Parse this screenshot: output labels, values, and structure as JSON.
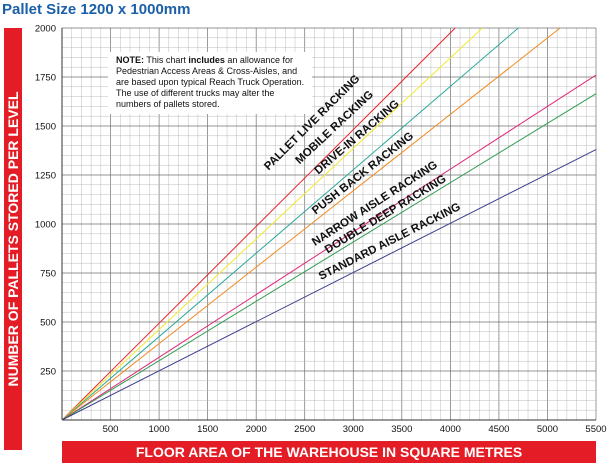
{
  "chart_data": {
    "type": "line",
    "title": "Pallet Size 1200 x 1000mm",
    "xlabel": "FLOOR AREA OF THE WAREHOUSE IN SQUARE METRES",
    "ylabel": "NUMBER OF PALLETS STORED PER LEVEL",
    "xlim": [
      0,
      5500
    ],
    "ylim": [
      0,
      2000
    ],
    "x_ticks": [
      500,
      1000,
      1500,
      2000,
      2500,
      3000,
      3500,
      4000,
      4500,
      5000,
      5500
    ],
    "y_ticks": [
      250,
      500,
      750,
      1000,
      1250,
      1500,
      1750,
      2000
    ],
    "grid": true,
    "series": [
      {
        "name": "PALLET LIVE RACKING",
        "color": "#e8242e",
        "x": [
          0,
          4050
        ],
        "y": [
          0,
          2000
        ]
      },
      {
        "name": "MOBILE RACKING",
        "color": "#f2ea2c",
        "x": [
          0,
          4330
        ],
        "y": [
          0,
          2000
        ]
      },
      {
        "name": "DRIVE-IN RACKING",
        "color": "#2aa89a",
        "x": [
          0,
          4700
        ],
        "y": [
          0,
          2000
        ]
      },
      {
        "name": "PUSH BACK RACKING",
        "color": "#f28a1e",
        "x": [
          0,
          5130
        ],
        "y": [
          0,
          2000
        ]
      },
      {
        "name": "NARROW AISLE RACKING",
        "color": "#e0287a",
        "x": [
          0,
          5500
        ],
        "y": [
          0,
          1760
        ]
      },
      {
        "name": "DOUBLE DEEP RACKING",
        "color": "#2f9a50",
        "x": [
          0,
          5500
        ],
        "y": [
          0,
          1665
        ]
      },
      {
        "name": "STANDARD AISLE RACKING",
        "color": "#3a3f8f",
        "x": [
          0,
          5500
        ],
        "y": [
          0,
          1380
        ]
      }
    ],
    "note": {
      "label": "NOTE:",
      "pre": "This chart",
      "bold": "includes",
      "post": "an allowance for Pedestrian Access Areas & Cross-Aisles, and are based upon typical Reach Truck Operation.",
      "line2": "The use of different trucks may alter the numbers of pallets stored."
    }
  }
}
